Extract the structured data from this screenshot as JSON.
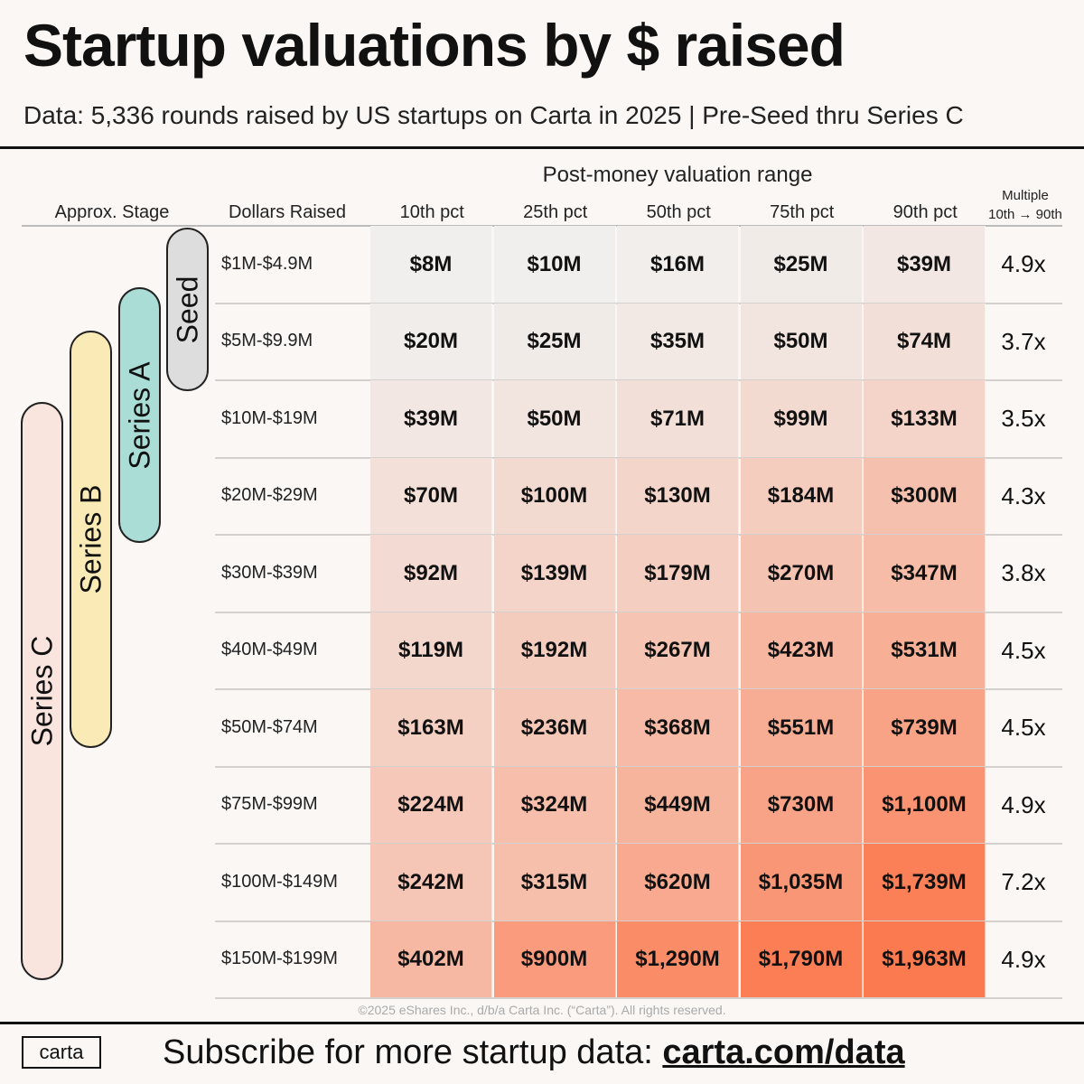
{
  "header": {
    "title": "Startup valuations by $ raised",
    "subtitle": "Data: 5,336 rounds raised by US startups on Carta in 2025 | Pre-Seed thru Series C"
  },
  "table_header": {
    "super_label": "Post-money valuation range",
    "stage_label": "Approx. Stage",
    "raised_label": "Dollars Raised",
    "multiple_label_1": "Multiple",
    "multiple_label_2": "10th → 90th"
  },
  "stages": [
    {
      "label": "Seed",
      "color": "#dcdddc",
      "from_row": 0,
      "to_row": 1
    },
    {
      "label": "Series A",
      "color": "#a9ddd6",
      "from_row": 0,
      "to_row": 3
    },
    {
      "label": "Series B",
      "color": "#faeab5",
      "from_row": 1,
      "to_row": 6
    },
    {
      "label": "Series C",
      "color": "#f9e4de",
      "from_row": 2,
      "to_row": 9
    }
  ],
  "chart_data": {
    "type": "heatmap",
    "title": "Startup valuations by $ raised",
    "xlabel": "Post-money valuation range",
    "ylabel": "Dollars Raised",
    "columns": [
      "10th pct",
      "25th pct",
      "50th pct",
      "75th pct",
      "90th pct"
    ],
    "rows": [
      "$1M-$4.9M",
      "$5M-$9.9M",
      "$10M-$19M",
      "$20M-$29M",
      "$30M-$39M",
      "$40M-$49M",
      "$50M-$74M",
      "$75M-$99M",
      "$100M-$149M",
      "$150M-$199M"
    ],
    "values_musd": [
      [
        8,
        10,
        16,
        25,
        39
      ],
      [
        20,
        25,
        35,
        50,
        74
      ],
      [
        39,
        50,
        71,
        99,
        133
      ],
      [
        70,
        100,
        130,
        184,
        300
      ],
      [
        92,
        139,
        179,
        270,
        347
      ],
      [
        119,
        192,
        267,
        423,
        531
      ],
      [
        163,
        236,
        368,
        551,
        739
      ],
      [
        224,
        324,
        449,
        730,
        1100
      ],
      [
        242,
        315,
        620,
        1035,
        1739
      ],
      [
        402,
        900,
        1290,
        1790,
        1963
      ]
    ],
    "labels": [
      [
        "$8M",
        "$10M",
        "$16M",
        "$25M",
        "$39M"
      ],
      [
        "$20M",
        "$25M",
        "$35M",
        "$50M",
        "$74M"
      ],
      [
        "$39M",
        "$50M",
        "$71M",
        "$99M",
        "$133M"
      ],
      [
        "$70M",
        "$100M",
        "$130M",
        "$184M",
        "$300M"
      ],
      [
        "$92M",
        "$139M",
        "$179M",
        "$270M",
        "$347M"
      ],
      [
        "$119M",
        "$192M",
        "$267M",
        "$423M",
        "$531M"
      ],
      [
        "$163M",
        "$236M",
        "$368M",
        "$551M",
        "$739M"
      ],
      [
        "$224M",
        "$324M",
        "$449M",
        "$730M",
        "$1,100M"
      ],
      [
        "$242M",
        "$315M",
        "$620M",
        "$1,035M",
        "$1,739M"
      ],
      [
        "$402M",
        "$900M",
        "$1,290M",
        "$1,790M",
        "$1,963M"
      ]
    ],
    "multiples": [
      "4.9x",
      "3.7x",
      "3.5x",
      "4.3x",
      "3.8x",
      "4.5x",
      "4.5x",
      "4.9x",
      "7.2x",
      "4.9x"
    ],
    "color_low": "#f1efed",
    "color_high": "#fc7a4f"
  },
  "copyright": "©2025 eShares Inc., d/b/a Carta Inc. (“Carta”). All rights reserved.",
  "footer": {
    "logo": "carta",
    "text": "Subscribe for more startup data: ",
    "link": "carta.com/data"
  }
}
